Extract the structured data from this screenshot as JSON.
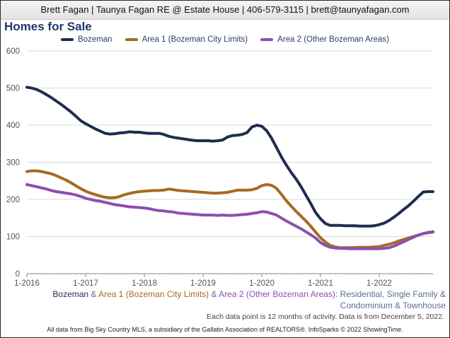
{
  "header": {
    "contact": "Brett Fagan | Taunya Fagan RE @ Estate House | 406-579-3115 | brett@taunyafagan.com"
  },
  "caption": {
    "s0": "Bozeman",
    "amp1": " & ",
    "s1": "Area 1 (Bozeman City Limits)",
    "amp2": " & ",
    "s2": "Area 2 (Other Bozeman Areas)",
    "rest1": ": Residential, Single Family &",
    "rest2": "Condominium & Townhouse"
  },
  "note": "Each data point is 12 months of activity. Data is from December 5, 2022.",
  "footer": "All data from Big Sky Country MLS, a subsidiary of the Gallatin Association of REALTORS®. InfoSparks © 2022 ShowingTime.",
  "colors": {
    "grid": "#d9d9d9",
    "axis": "#888888",
    "s0": "#1f2d4e",
    "s1": "#a66a22",
    "s2": "#8b4fb0",
    "title": "#1e3a6e"
  },
  "chart_data": {
    "type": "line",
    "title": "Homes for Sale",
    "xlabel": "",
    "ylabel": "",
    "ylim": [
      0,
      600
    ],
    "yticks": [
      "0",
      "100",
      "200",
      "300",
      "400",
      "500",
      "600"
    ],
    "xticks": [
      "1-2016",
      "1-2017",
      "1-2018",
      "1-2019",
      "1-2020",
      "1-2021",
      "1-2022"
    ],
    "x_range_months": [
      0,
      83
    ],
    "x": [
      0,
      1,
      2,
      3,
      4,
      5,
      6,
      7,
      8,
      9,
      10,
      11,
      12,
      13,
      14,
      15,
      16,
      17,
      18,
      19,
      20,
      21,
      22,
      23,
      24,
      25,
      26,
      27,
      28,
      29,
      30,
      31,
      32,
      33,
      34,
      35,
      36,
      37,
      38,
      39,
      40,
      41,
      42,
      43,
      44,
      45,
      46,
      47,
      48,
      49,
      50,
      51,
      52,
      53,
      54,
      55,
      56,
      57,
      58,
      59,
      60,
      61,
      62,
      63,
      64,
      65,
      66,
      67,
      68,
      69,
      70,
      71,
      72,
      73,
      74,
      75,
      76,
      77,
      78,
      79,
      80,
      81,
      82,
      83
    ],
    "series": [
      {
        "name": "Bozeman",
        "color": "#1f2d4e",
        "values": [
          502,
          500,
          496,
          490,
          482,
          474,
          465,
          456,
          446,
          436,
          424,
          412,
          404,
          397,
          390,
          384,
          378,
          376,
          377,
          379,
          380,
          382,
          381,
          381,
          379,
          378,
          378,
          378,
          375,
          370,
          367,
          365,
          363,
          361,
          359,
          358,
          358,
          358,
          357,
          358,
          360,
          368,
          372,
          373,
          375,
          380,
          395,
          400,
          397,
          385,
          365,
          340,
          315,
          293,
          273,
          255,
          235,
          212,
          189,
          165,
          148,
          135,
          130,
          130,
          130,
          129,
          129,
          129,
          128,
          128,
          128,
          129,
          132,
          136,
          143,
          152,
          162,
          173,
          183,
          195,
          208,
          220,
          221,
          221
        ]
      },
      {
        "name": "Area 1 (Bozeman City Limits)",
        "color": "#a66a22",
        "values": [
          275,
          277,
          277,
          275,
          272,
          269,
          264,
          258,
          252,
          245,
          237,
          229,
          222,
          217,
          213,
          209,
          206,
          204,
          205,
          208,
          213,
          216,
          219,
          221,
          222,
          223,
          224,
          224,
          225,
          228,
          226,
          224,
          223,
          222,
          221,
          220,
          219,
          218,
          217,
          217,
          218,
          219,
          222,
          225,
          225,
          225,
          226,
          230,
          237,
          240,
          238,
          230,
          214,
          197,
          182,
          168,
          155,
          142,
          128,
          112,
          97,
          85,
          76,
          72,
          70,
          70,
          70,
          70,
          71,
          71,
          71,
          72,
          73,
          76,
          79,
          83,
          88,
          92,
          96,
          100,
          104,
          108,
          110,
          112
        ]
      },
      {
        "name": "Area 2 (Other Bozeman Areas)",
        "color": "#8b4fb0",
        "values": [
          240,
          237,
          234,
          231,
          228,
          224,
          221,
          219,
          217,
          215,
          212,
          208,
          203,
          200,
          197,
          195,
          192,
          189,
          186,
          184,
          182,
          180,
          179,
          178,
          177,
          175,
          172,
          170,
          169,
          167,
          166,
          163,
          162,
          161,
          160,
          159,
          158,
          158,
          158,
          157,
          158,
          157,
          157,
          158,
          159,
          160,
          162,
          164,
          167,
          166,
          162,
          158,
          150,
          142,
          135,
          128,
          121,
          113,
          105,
          96,
          84,
          76,
          71,
          69,
          68,
          68,
          67,
          67,
          67,
          67,
          67,
          67,
          67,
          68,
          70,
          74,
          80,
          86,
          92,
          98,
          104,
          108,
          111,
          113
        ]
      }
    ]
  }
}
